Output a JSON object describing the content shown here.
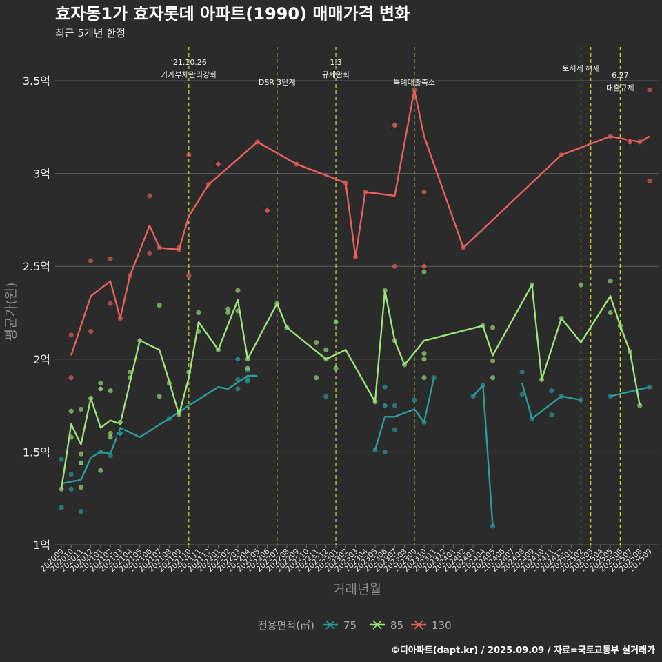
{
  "chart_data": {
    "type": "line",
    "title": "효자동1가 효자롯데 아파트(1990) 매매가격 변화",
    "subtitle": "최근 5개년 한정",
    "xlabel": "거래년월",
    "ylabel": "평균가(원)",
    "ylim": [
      1,
      3.6
    ],
    "yticks": [
      {
        "value": 1,
        "label": "1억"
      },
      {
        "value": 1.5,
        "label": "1.5억"
      },
      {
        "value": 2,
        "label": "2억"
      },
      {
        "value": 2.5,
        "label": "2.5억"
      },
      {
        "value": 3,
        "label": "3억"
      },
      {
        "value": 3.5,
        "label": "3.5억"
      }
    ],
    "grid": true,
    "categories": [
      "202009",
      "202010",
      "202011",
      "202012",
      "202101",
      "202102",
      "202103",
      "202104",
      "202105",
      "202106",
      "202107",
      "202108",
      "202109",
      "202110",
      "202111",
      "202112",
      "202201",
      "202202",
      "202203",
      "202204",
      "202205",
      "202206",
      "202207",
      "202208",
      "202209",
      "202210",
      "202211",
      "202212",
      "202301",
      "202302",
      "202303",
      "202304",
      "202305",
      "202306",
      "202307",
      "202308",
      "202309",
      "202310",
      "202311",
      "202312",
      "202401",
      "202402",
      "202403",
      "202404",
      "202405",
      "202406",
      "202407",
      "202408",
      "202409",
      "202410",
      "202411",
      "202412",
      "202501",
      "202502",
      "202503",
      "202504",
      "202505",
      "202506",
      "202507",
      "202508",
      "202509"
    ],
    "events": [
      {
        "at": 13.0,
        "label1": "'21.10.26",
        "label2": "가계부채관리강화"
      },
      {
        "at": 22.0,
        "label1": "",
        "label2": "DSR 3단계"
      },
      {
        "at": 28.0,
        "label1": "1.3",
        "label2": "규제완화"
      },
      {
        "at": 36.0,
        "label1": "",
        "label2": "특례대출축소"
      },
      {
        "at": 53.0,
        "label1": "",
        "label2": "토허제 해제"
      },
      {
        "at": 54.0,
        "label1": "",
        "label2": ""
      },
      {
        "at": 57.0,
        "label1": "6.27",
        "label2": "대출규제"
      }
    ],
    "legend_title": "전용면적(㎡)",
    "legend_position": "bottom",
    "series": [
      {
        "name": "75",
        "color": "#2a9d9b",
        "line": [
          [
            [
              0,
              1.33
            ],
            [
              1,
              1.34
            ],
            [
              2,
              1.35
            ],
            [
              3,
              1.47
            ],
            [
              4,
              1.5
            ],
            [
              5,
              1.49
            ],
            [
              6,
              1.63
            ],
            [
              8,
              1.58
            ],
            [
              11,
              1.68
            ],
            [
              13,
              1.75
            ],
            [
              16,
              1.85
            ],
            [
              17,
              1.84
            ],
            [
              19,
              1.91
            ],
            [
              20,
              1.91
            ]
          ],
          [
            [
              32,
              1.51
            ],
            [
              33,
              1.69
            ],
            [
              34,
              1.69
            ],
            [
              36,
              1.73
            ],
            [
              37,
              1.66
            ],
            [
              38,
              1.9
            ]
          ],
          [
            [
              42,
              1.8
            ],
            [
              43,
              1.86
            ],
            [
              44,
              1.1
            ]
          ],
          [
            [
              47,
              1.87
            ],
            [
              48,
              1.68
            ],
            [
              51,
              1.8
            ],
            [
              53,
              1.78
            ]
          ],
          [
            [
              56,
              1.8
            ],
            [
              60,
              1.85
            ]
          ]
        ],
        "points": [
          [
            0,
            1.46
          ],
          [
            0,
            1.2
          ],
          [
            1,
            1.38
          ],
          [
            1,
            1.3
          ],
          [
            2,
            1.44
          ],
          [
            2,
            1.18
          ],
          [
            4,
            1.5
          ],
          [
            5,
            1.48
          ],
          [
            6,
            1.6
          ],
          [
            11,
            1.68
          ],
          [
            18,
            1.89
          ],
          [
            18,
            1.84
          ],
          [
            19,
            1.89
          ],
          [
            19,
            1.88
          ],
          [
            19,
            1.94
          ],
          [
            27,
            1.8
          ],
          [
            32,
            1.51
          ],
          [
            33,
            1.85
          ],
          [
            33,
            1.5
          ],
          [
            34,
            1.75
          ],
          [
            34,
            1.62
          ],
          [
            36,
            1.78
          ],
          [
            37,
            1.66
          ],
          [
            38,
            1.9
          ],
          [
            42,
            1.8
          ],
          [
            43,
            1.86
          ],
          [
            44,
            1.1
          ],
          [
            47,
            1.93
          ],
          [
            47,
            1.81
          ],
          [
            48,
            1.68
          ],
          [
            50,
            1.83
          ],
          [
            50,
            1.7
          ],
          [
            51,
            1.8
          ],
          [
            53,
            1.78
          ],
          [
            56,
            1.8
          ],
          [
            60,
            1.85
          ]
        ],
        "x_marks": [
          [
            6,
            1.6
          ],
          [
            18,
            2.0
          ],
          [
            33,
            1.75
          ]
        ]
      },
      {
        "name": "85",
        "color": "#9be37a",
        "line": [
          [
            [
              0,
              1.3
            ],
            [
              1,
              1.65
            ],
            [
              2,
              1.54
            ],
            [
              3,
              1.79
            ],
            [
              4,
              1.63
            ],
            [
              5,
              1.67
            ],
            [
              6,
              1.65
            ],
            [
              8,
              2.1
            ],
            [
              10,
              2.05
            ],
            [
              11,
              1.88
            ],
            [
              12,
              1.7
            ],
            [
              13,
              1.9
            ],
            [
              14,
              2.2
            ],
            [
              16,
              2.05
            ],
            [
              18,
              2.32
            ],
            [
              19,
              2.0
            ],
            [
              22,
              2.3
            ],
            [
              23,
              2.17
            ],
            [
              27,
              2.0
            ],
            [
              29,
              2.05
            ],
            [
              32,
              1.77
            ],
            [
              33,
              2.37
            ],
            [
              34,
              2.1
            ],
            [
              35,
              1.97
            ],
            [
              37,
              2.1
            ],
            [
              43,
              2.18
            ],
            [
              44,
              2.02
            ],
            [
              48,
              2.4
            ],
            [
              49,
              1.89
            ],
            [
              51,
              2.22
            ],
            [
              53,
              2.09
            ],
            [
              56,
              2.34
            ],
            [
              57,
              2.18
            ],
            [
              58,
              2.04
            ],
            [
              59,
              1.75
            ]
          ]
        ],
        "points": [
          [
            0,
            1.3
          ],
          [
            1,
            1.72
          ],
          [
            1,
            1.58
          ],
          [
            2,
            1.73
          ],
          [
            2,
            1.49
          ],
          [
            2,
            1.44
          ],
          [
            2,
            1.31
          ],
          [
            3,
            1.79
          ],
          [
            4,
            1.87
          ],
          [
            4,
            1.4
          ],
          [
            5,
            1.83
          ],
          [
            5,
            1.6
          ],
          [
            5,
            1.58
          ],
          [
            7,
            1.93
          ],
          [
            7,
            1.9
          ],
          [
            10,
            2.29
          ],
          [
            10,
            1.8
          ],
          [
            11,
            1.87
          ],
          [
            12,
            1.7
          ],
          [
            13,
            1.93
          ],
          [
            14,
            2.25
          ],
          [
            14,
            2.15
          ],
          [
            16,
            2.05
          ],
          [
            17,
            2.27
          ],
          [
            17,
            2.25
          ],
          [
            18,
            2.37
          ],
          [
            18,
            2.26
          ],
          [
            19,
            2.0
          ],
          [
            19,
            1.95
          ],
          [
            22,
            2.3
          ],
          [
            23,
            2.17
          ],
          [
            26,
            2.09
          ],
          [
            26,
            1.9
          ],
          [
            27,
            2.05
          ],
          [
            27,
            2.0
          ],
          [
            28,
            2.2
          ],
          [
            28,
            1.95
          ],
          [
            32,
            1.77
          ],
          [
            33,
            2.37
          ],
          [
            34,
            2.1
          ],
          [
            35,
            1.97
          ],
          [
            37,
            2.47
          ],
          [
            37,
            2.03
          ],
          [
            37,
            2.0
          ],
          [
            37,
            1.9
          ],
          [
            43,
            2.18
          ],
          [
            44,
            2.17
          ],
          [
            44,
            1.99
          ],
          [
            44,
            1.9
          ],
          [
            48,
            2.4
          ],
          [
            49,
            1.89
          ],
          [
            51,
            2.22
          ],
          [
            53,
            2.4
          ],
          [
            56,
            2.42
          ],
          [
            56,
            2.25
          ],
          [
            57,
            2.18
          ],
          [
            58,
            2.04
          ],
          [
            59,
            1.75
          ]
        ],
        "x_marks": [
          [
            4,
            1.84
          ],
          [
            6,
            1.66
          ],
          [
            8,
            2.1
          ]
        ]
      },
      {
        "name": "130",
        "color": "#e8605c",
        "line": [
          [
            [
              1,
              2.02
            ],
            [
              3,
              2.34
            ],
            [
              5,
              2.42
            ],
            [
              6,
              2.22
            ],
            [
              7,
              2.45
            ],
            [
              9,
              2.72
            ],
            [
              10,
              2.6
            ],
            [
              12,
              2.59
            ],
            [
              13,
              2.77
            ],
            [
              15,
              2.94
            ],
            [
              20,
              3.17
            ],
            [
              24,
              3.05
            ],
            [
              29,
              2.95
            ],
            [
              30,
              2.55
            ],
            [
              31,
              2.9
            ],
            [
              34,
              2.88
            ],
            [
              36,
              3.45
            ],
            [
              37,
              3.2
            ],
            [
              41,
              2.6
            ],
            [
              51,
              3.1
            ],
            [
              56,
              3.2
            ],
            [
              59,
              3.17
            ],
            [
              60,
              3.2
            ]
          ]
        ],
        "points": [
          [
            1,
            2.13
          ],
          [
            1,
            1.9
          ],
          [
            3,
            2.53
          ],
          [
            3,
            2.15
          ],
          [
            5,
            2.54
          ],
          [
            5,
            2.3
          ],
          [
            6,
            2.22
          ],
          [
            7,
            2.45
          ],
          [
            9,
            2.88
          ],
          [
            9,
            2.57
          ],
          [
            10,
            2.6
          ],
          [
            12,
            2.59
          ],
          [
            12,
            2.6
          ],
          [
            13,
            3.1
          ],
          [
            13,
            2.45
          ],
          [
            15,
            2.94
          ],
          [
            20,
            3.17
          ],
          [
            24,
            3.05
          ],
          [
            29,
            2.95
          ],
          [
            30,
            2.55
          ],
          [
            31,
            2.9
          ],
          [
            34,
            2.5
          ],
          [
            36,
            3.45
          ],
          [
            37,
            2.9
          ],
          [
            41,
            2.6
          ],
          [
            51,
            3.1
          ],
          [
            56,
            3.2
          ],
          [
            59,
            3.17
          ],
          [
            60,
            3.45
          ],
          [
            60,
            2.96
          ]
        ],
        "x_marks": [
          [
            16,
            3.05
          ],
          [
            21,
            2.8
          ],
          [
            34,
            3.26
          ],
          [
            37,
            2.5
          ],
          [
            58,
            3.17
          ]
        ]
      }
    ]
  },
  "caption": "©디아파트(dapt.kr) / 2025.09.09 / 자료=국토교통부 실거래가"
}
